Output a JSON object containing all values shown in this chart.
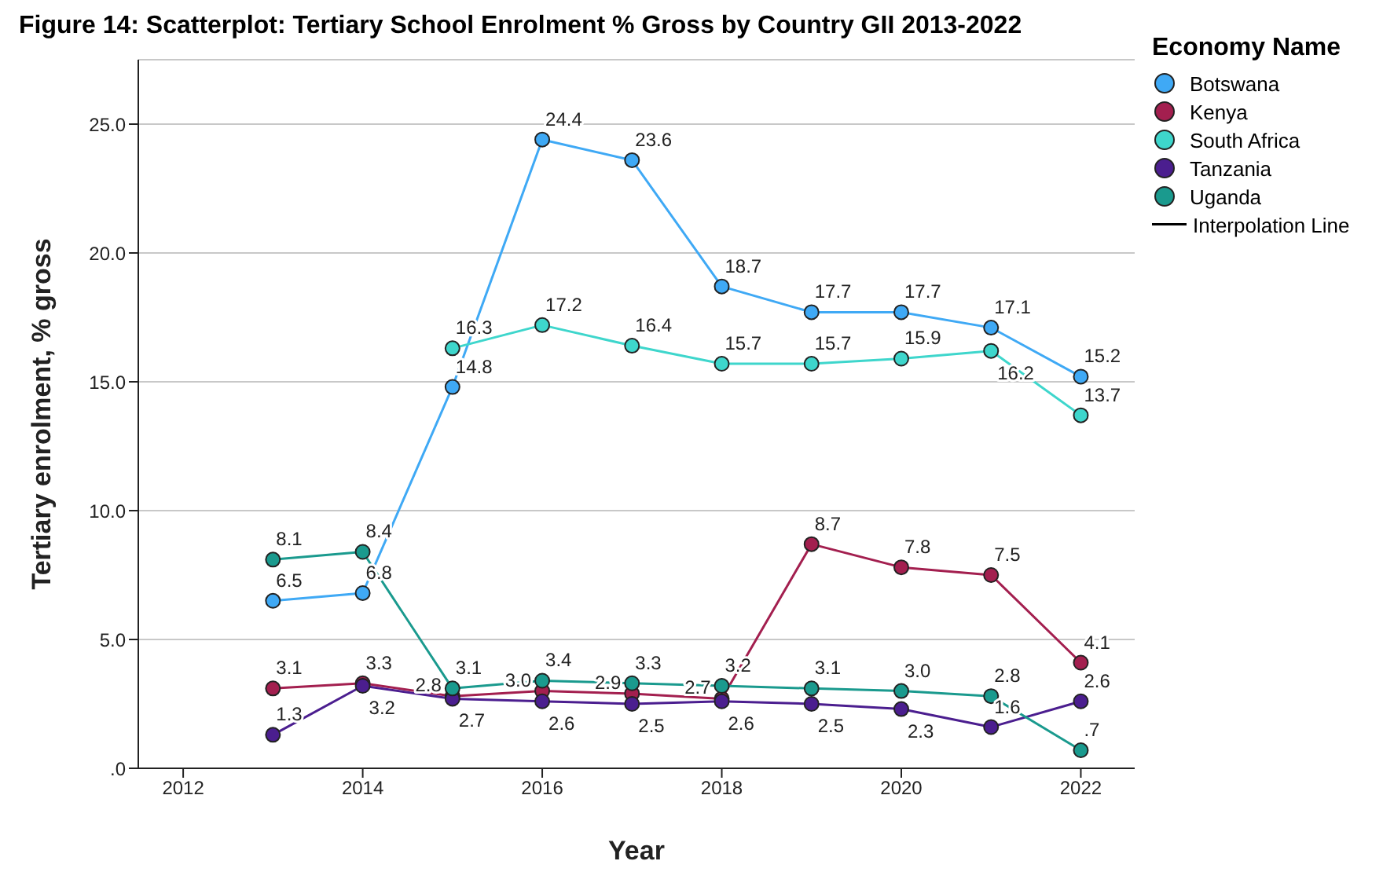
{
  "chart_data": {
    "type": "line",
    "title": "Figure 14: Scatterplot: Tertiary School Enrolment  % Gross by Country GII 2013-2022",
    "xlabel": "Year",
    "ylabel": "Tertiary enrolment, % gross",
    "legend_title": "Economy Name",
    "annotations": [
      "Interpolation Line"
    ],
    "x": [
      2013,
      2014,
      2015,
      2016,
      2017,
      2018,
      2019,
      2020,
      2021,
      2022
    ],
    "series": [
      {
        "name": "Botswana",
        "color": "#3fa9f5",
        "values": [
          6.5,
          6.8,
          14.8,
          24.4,
          23.6,
          18.7,
          17.7,
          17.7,
          17.1,
          15.2
        ],
        "value_labels": [
          "6.5",
          "6.8",
          "14.8",
          "24.4",
          "23.6",
          "18.7",
          "17.7",
          "17.7",
          "17.1",
          "15.2"
        ]
      },
      {
        "name": "Kenya",
        "color": "#a31f4f",
        "values": [
          3.1,
          3.3,
          2.8,
          3.0,
          2.9,
          2.7,
          8.7,
          7.8,
          7.5,
          4.1
        ],
        "value_labels": [
          "3.1",
          "3.3",
          "2.8",
          "3.0",
          "2.9",
          "2.7",
          "8.7",
          "7.8",
          "7.5",
          "4.1"
        ]
      },
      {
        "name": "South Africa",
        "color": "#3ed6cc",
        "values": [
          null,
          null,
          16.3,
          17.2,
          16.4,
          15.7,
          15.7,
          15.9,
          16.2,
          13.7
        ],
        "value_labels": [
          null,
          null,
          "16.3",
          "17.2",
          "16.4",
          "15.7",
          "15.7",
          "15.9",
          "16.2",
          "13.7"
        ]
      },
      {
        "name": "Tanzania",
        "color": "#4b1e8f",
        "values": [
          1.3,
          3.2,
          2.7,
          2.6,
          2.5,
          2.6,
          2.5,
          2.3,
          1.6,
          2.6
        ],
        "value_labels": [
          "1.3",
          "3.2",
          "2.7",
          "2.6",
          "2.5",
          "2.6",
          "2.5",
          "2.3",
          "1.6",
          "2.6"
        ]
      },
      {
        "name": "Uganda",
        "color": "#1a9a8e",
        "values": [
          8.1,
          8.4,
          3.1,
          3.4,
          3.3,
          3.2,
          3.1,
          3.0,
          2.8,
          0.7
        ],
        "value_labels": [
          "8.1",
          "8.4",
          "3.1",
          "3.4",
          "3.3",
          "3.2",
          "3.1",
          "3.0",
          "2.8",
          ".7"
        ]
      }
    ],
    "xlim": [
      2011.5,
      2022.6
    ],
    "xticks": [
      2012,
      2014,
      2016,
      2018,
      2020,
      2022
    ],
    "ylim": [
      0,
      27.5
    ],
    "yticks": [
      {
        "value": 0,
        "label": ".0"
      },
      {
        "value": 5,
        "label": "5.0"
      },
      {
        "value": 10,
        "label": "10.0"
      },
      {
        "value": 15,
        "label": "15.0"
      },
      {
        "value": 20,
        "label": "20.0"
      },
      {
        "value": 25,
        "label": "25.0"
      }
    ],
    "grid": "y",
    "legend": "top right",
    "marker": "circle",
    "line_style": "solid"
  }
}
